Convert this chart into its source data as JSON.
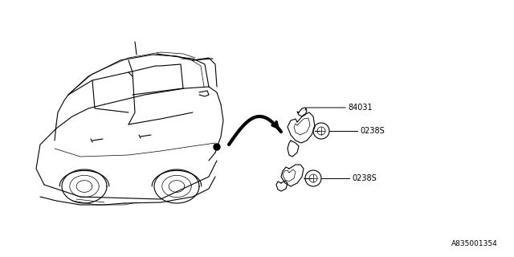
{
  "background_color": "#ffffff",
  "fig_width": 6.4,
  "fig_height": 3.2,
  "dpi": 100,
  "part_number_label": "84031",
  "bolt_label": "0238S",
  "diagram_id": "A835001354",
  "text_color": "#000000",
  "line_color": "#000000"
}
